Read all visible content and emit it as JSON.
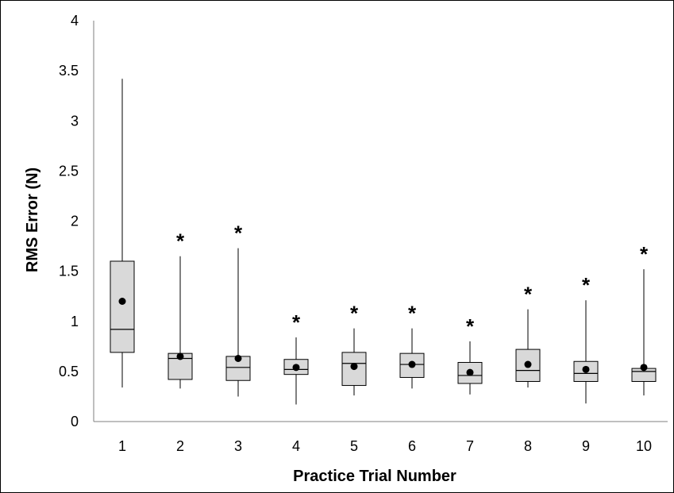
{
  "chart_data": {
    "type": "box",
    "title": "",
    "xlabel": "Practice Trial Number",
    "ylabel": "RMS Error (N)",
    "ylim": [
      0,
      4
    ],
    "yticks": [
      "0",
      "0.5",
      "1",
      "1.5",
      "2",
      "2.5",
      "3",
      "3.5",
      "4"
    ],
    "categories": [
      "1",
      "2",
      "3",
      "4",
      "5",
      "6",
      "7",
      "8",
      "9",
      "10"
    ],
    "boxes": [
      {
        "min": 0.34,
        "q1": 0.69,
        "median": 0.92,
        "q3": 1.6,
        "max": 3.42,
        "mean": 1.2,
        "annotation": ""
      },
      {
        "min": 0.33,
        "q1": 0.42,
        "median": 0.63,
        "q3": 0.68,
        "max": 1.65,
        "mean": 0.65,
        "annotation": "*"
      },
      {
        "min": 0.25,
        "q1": 0.41,
        "median": 0.54,
        "q3": 0.65,
        "max": 1.73,
        "mean": 0.63,
        "annotation": "*"
      },
      {
        "min": 0.17,
        "q1": 0.47,
        "median": 0.52,
        "q3": 0.62,
        "max": 0.84,
        "mean": 0.54,
        "annotation": "*"
      },
      {
        "min": 0.26,
        "q1": 0.36,
        "median": 0.58,
        "q3": 0.69,
        "max": 0.93,
        "mean": 0.55,
        "annotation": "*"
      },
      {
        "min": 0.33,
        "q1": 0.44,
        "median": 0.57,
        "q3": 0.68,
        "max": 0.93,
        "mean": 0.57,
        "annotation": "*"
      },
      {
        "min": 0.27,
        "q1": 0.38,
        "median": 0.46,
        "q3": 0.59,
        "max": 0.8,
        "mean": 0.49,
        "annotation": "*"
      },
      {
        "min": 0.34,
        "q1": 0.4,
        "median": 0.51,
        "q3": 0.72,
        "max": 1.12,
        "mean": 0.57,
        "annotation": "*"
      },
      {
        "min": 0.18,
        "q1": 0.4,
        "median": 0.48,
        "q3": 0.6,
        "max": 1.21,
        "mean": 0.52,
        "annotation": "*"
      },
      {
        "min": 0.26,
        "q1": 0.4,
        "median": 0.5,
        "q3": 0.53,
        "max": 1.52,
        "mean": 0.54,
        "annotation": "*"
      }
    ],
    "grid": false,
    "legend": "none",
    "box_fill": "#d9d9d9",
    "line_color": "#000000"
  }
}
